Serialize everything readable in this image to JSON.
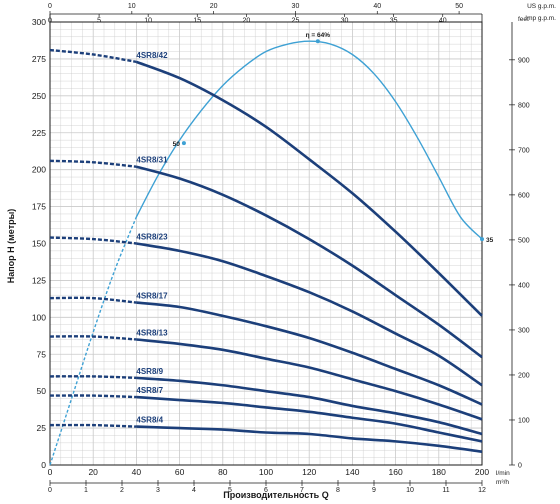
{
  "chart_data": {
    "type": "line",
    "ylabel": "Напор H (метры)",
    "xlabel": "Производительность Q",
    "axes": {
      "x_bottom": {
        "unit": "l/min",
        "min": 0,
        "max": 200,
        "ticks": [
          0,
          20,
          40,
          60,
          80,
          100,
          120,
          140,
          160,
          180,
          200
        ]
      },
      "x_bottom_secondary": {
        "unit": "m³/h",
        "min": 0,
        "max": 12,
        "ticks": [
          0,
          1,
          2,
          3,
          4,
          5,
          6,
          7,
          8,
          9,
          10,
          11,
          12
        ]
      },
      "x_top_us": {
        "unit": "US g.p.m.",
        "min": 0,
        "max": 52.8,
        "ticks": [
          0,
          10,
          20,
          30,
          40,
          50
        ]
      },
      "x_top_imp": {
        "unit": "Imp g.p.m.",
        "min": 0,
        "max": 44,
        "ticks": [
          0,
          5,
          10,
          15,
          20,
          25,
          30,
          35,
          40
        ]
      },
      "y_left": {
        "unit": "",
        "min": 0,
        "max": 300,
        "ticks": [
          0,
          25,
          50,
          75,
          100,
          125,
          150,
          175,
          200,
          225,
          250,
          275,
          300
        ]
      },
      "y_right": {
        "unit": "feet",
        "min": 0,
        "max": 984,
        "ticks": [
          0,
          100,
          200,
          300,
          400,
          500,
          600,
          700,
          800,
          900
        ]
      }
    },
    "grid": true,
    "series": [
      {
        "name": "4SR8/42",
        "x": [
          0,
          20,
          40,
          60,
          80,
          100,
          120,
          140,
          160,
          180,
          200
        ],
        "y": [
          281,
          278,
          273,
          262,
          247,
          229,
          207,
          184,
          158,
          130,
          101
        ],
        "dashed_until": 40
      },
      {
        "name": "4SR8/31",
        "x": [
          0,
          20,
          40,
          60,
          80,
          100,
          120,
          140,
          160,
          180,
          200
        ],
        "y": [
          206,
          205,
          202,
          194,
          183,
          169,
          153,
          135,
          115,
          95,
          73
        ],
        "dashed_until": 40
      },
      {
        "name": "4SR8/23",
        "x": [
          0,
          20,
          40,
          60,
          80,
          100,
          120,
          140,
          160,
          180,
          200
        ],
        "y": [
          154,
          153,
          150,
          145,
          138,
          128,
          117,
          104,
          89,
          74,
          54
        ],
        "dashed_until": 40
      },
      {
        "name": "4SR8/17",
        "x": [
          0,
          20,
          40,
          60,
          80,
          100,
          120,
          140,
          160,
          180,
          200
        ],
        "y": [
          113,
          113,
          110,
          107,
          101,
          94,
          86,
          76,
          65,
          54,
          41
        ],
        "dashed_until": 40
      },
      {
        "name": "4SR8/13",
        "x": [
          0,
          20,
          40,
          60,
          80,
          100,
          120,
          140,
          160,
          180,
          200
        ],
        "y": [
          87,
          87,
          85,
          82,
          78,
          72,
          66,
          58,
          50,
          41,
          31
        ],
        "dashed_until": 40
      },
      {
        "name": "4SR8/9",
        "x": [
          0,
          20,
          40,
          60,
          80,
          100,
          120,
          140,
          160,
          180,
          200
        ],
        "y": [
          60,
          60,
          59,
          57,
          54,
          50,
          46,
          40,
          35,
          29,
          21
        ],
        "dashed_until": 40
      },
      {
        "name": "4SR8/7",
        "x": [
          0,
          20,
          40,
          60,
          80,
          100,
          120,
          140,
          160,
          180,
          200
        ],
        "y": [
          47,
          47,
          46,
          44,
          42,
          39,
          36,
          32,
          28,
          22,
          16
        ],
        "dashed_until": 40
      },
      {
        "name": "4SR8/4",
        "x": [
          0,
          20,
          40,
          60,
          80,
          100,
          120,
          140,
          160,
          180,
          200
        ],
        "y": [
          27,
          27,
          26,
          25,
          24,
          22,
          21,
          18,
          16,
          13,
          9
        ],
        "dashed_until": 40
      }
    ],
    "efficiency_curve": {
      "x": [
        0,
        10,
        20,
        30,
        40,
        50,
        60,
        70,
        80,
        90,
        100,
        110,
        120,
        130,
        140,
        150,
        160,
        170,
        180,
        190,
        200
      ],
      "y": [
        0,
        45,
        90,
        132,
        168,
        196,
        220,
        240,
        257,
        270,
        280,
        285,
        287,
        285,
        278,
        265,
        246,
        222,
        195,
        168,
        153
      ],
      "points": [
        {
          "label": "50",
          "x": 62,
          "y": 218
        },
        {
          "label": "η = 64%",
          "x": 124,
          "y": 287
        },
        {
          "label": "35",
          "x": 200,
          "y": 153
        }
      ]
    },
    "colors": {
      "curve": "#1c3f7a",
      "efficiency": "#3ea1d4",
      "grid": "#c9c9c9",
      "text": "#1a1a1a"
    }
  }
}
